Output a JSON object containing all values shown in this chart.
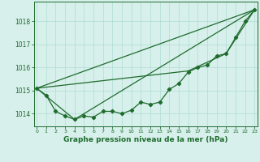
{
  "x": [
    0,
    1,
    2,
    3,
    4,
    5,
    6,
    7,
    8,
    9,
    10,
    11,
    12,
    13,
    14,
    15,
    16,
    17,
    18,
    19,
    20,
    21,
    22,
    23
  ],
  "line_main": [
    1015.1,
    1014.8,
    1014.1,
    1013.9,
    1013.75,
    1013.9,
    1013.85,
    1014.1,
    1014.1,
    1014.0,
    1014.15,
    1014.5,
    1014.4,
    1014.5,
    1015.05,
    1015.3,
    1015.8,
    1016.0,
    1016.1,
    1016.5,
    1016.6,
    1017.3,
    1018.0,
    1018.5
  ],
  "straight_line_x": [
    0,
    23
  ],
  "straight_line_y": [
    1015.1,
    1018.5
  ],
  "trend2_x": [
    0,
    4,
    23
  ],
  "trend2_y": [
    1015.1,
    1013.75,
    1018.5
  ],
  "trend3_x": [
    0,
    16,
    20,
    23
  ],
  "trend3_y": [
    1015.1,
    1015.85,
    1016.6,
    1018.5
  ],
  "background_color": "#d7f0eb",
  "grid_color": "#b0ddd4",
  "line_color": "#1f6b2e",
  "xlabel": "Graphe pression niveau de la mer (hPa)",
  "yticks": [
    1014,
    1015,
    1016,
    1017,
    1018
  ],
  "xticks": [
    0,
    1,
    2,
    3,
    4,
    5,
    6,
    7,
    8,
    9,
    10,
    11,
    12,
    13,
    14,
    15,
    16,
    17,
    18,
    19,
    20,
    21,
    22,
    23
  ],
  "ylim": [
    1013.45,
    1018.85
  ],
  "xlim": [
    -0.3,
    23.3
  ],
  "figsize": [
    3.2,
    2.0
  ],
  "dpi": 100
}
